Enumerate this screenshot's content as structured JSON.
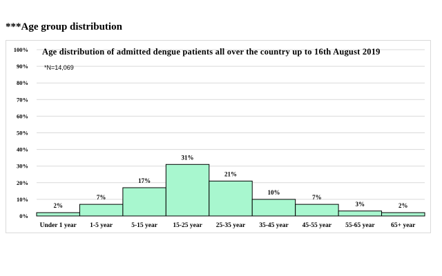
{
  "heading": "***Age group distribution",
  "chart_data": {
    "type": "bar",
    "title": "Age distribution  of admitted  dengue patients all over the country  up to 16th August  2019",
    "note": "*N=14,069",
    "categories": [
      "Under 1 year",
      "1-5  year",
      "5-15 year",
      "15-25 year",
      "25-35 year",
      "35-45 year",
      "45-55 year",
      "55-65 year",
      "65+ year"
    ],
    "values": [
      2,
      7,
      17,
      31,
      21,
      10,
      7,
      3,
      2
    ],
    "data_labels": [
      "2%",
      "7%",
      "17%",
      "31%",
      "21%",
      "10%",
      "7%",
      "3%",
      "2%"
    ],
    "y_ticks": [
      "0%",
      "10%",
      "20%",
      "30%",
      "40%",
      "50%",
      "60%",
      "70%",
      "80%",
      "90%",
      "100%"
    ],
    "xlabel": "",
    "ylabel": "",
    "ylim": [
      0,
      100
    ],
    "grid": true,
    "bar_color": "#a8f7cf",
    "bar_edge_color": "#000000",
    "grid_color": "#d9d9d9"
  }
}
